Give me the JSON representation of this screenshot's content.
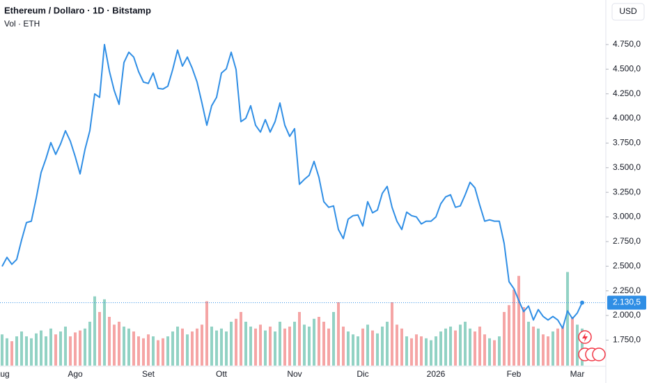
{
  "chart_data": {
    "type": "line",
    "title": "Ethereum / Dollaro · 1D · Bitstamp",
    "subtitle": "Vol · ETH",
    "currency": "USD",
    "categories": [
      "Aug",
      null,
      null,
      null,
      null,
      null,
      null,
      null,
      null,
      null,
      null,
      null,
      null,
      null,
      null,
      "Ago",
      null,
      null,
      null,
      null,
      null,
      null,
      null,
      null,
      null,
      null,
      null,
      null,
      null,
      null,
      "Set",
      null,
      null,
      null,
      null,
      null,
      null,
      null,
      null,
      null,
      null,
      null,
      null,
      null,
      null,
      "Ott",
      null,
      null,
      null,
      null,
      null,
      null,
      null,
      null,
      null,
      null,
      null,
      null,
      null,
      null,
      "Nov",
      null,
      null,
      null,
      null,
      null,
      null,
      null,
      null,
      null,
      null,
      null,
      null,
      null,
      "Dic",
      null,
      null,
      null,
      null,
      null,
      null,
      null,
      null,
      null,
      null,
      null,
      null,
      null,
      null,
      "2026",
      null,
      null,
      null,
      null,
      null,
      null,
      null,
      null,
      null,
      null,
      null,
      null,
      null,
      null,
      null,
      "Feb",
      null,
      null,
      null,
      null,
      null,
      null,
      null,
      null,
      null,
      null,
      null,
      null,
      "Mar",
      null
    ],
    "series": [
      {
        "name": "Ethereum / Dollaro",
        "color": "#2f8ee5",
        "values": [
          2498,
          2590,
          2519,
          2569,
          2766,
          2943,
          2957,
          3190,
          3451,
          3592,
          3755,
          3635,
          3741,
          3875,
          3769,
          3613,
          3437,
          3684,
          3875,
          4249,
          4214,
          4750,
          4482,
          4284,
          4143,
          4567,
          4672,
          4623,
          4475,
          4369,
          4355,
          4461,
          4305,
          4298,
          4327,
          4496,
          4694,
          4531,
          4623,
          4510,
          4369,
          4157,
          3931,
          4129,
          4214,
          4461,
          4503,
          4672,
          4496,
          3967,
          4002,
          4129,
          3931,
          3861,
          3988,
          3861,
          3967,
          4157,
          3931,
          3818,
          3896,
          3331,
          3381,
          3423,
          3564,
          3402,
          3155,
          3098,
          3112,
          2872,
          2780,
          2978,
          3013,
          3020,
          2908,
          3155,
          3042,
          3070,
          3239,
          3310,
          3098,
          2957,
          2872,
          3049,
          3013,
          3000,
          2929,
          2957,
          2957,
          3000,
          3134,
          3204,
          3225,
          3098,
          3112,
          3225,
          3352,
          3296,
          3119,
          2957,
          2971,
          2957,
          2957,
          2731,
          2343,
          2272,
          2152,
          2039,
          2096,
          1954,
          2060,
          1990,
          1954,
          1990,
          1954,
          1870,
          2046,
          1968,
          2025,
          2130.5
        ]
      }
    ],
    "volume": {
      "name": "Vol",
      "axis": "y2",
      "up_color": "#92d2c4",
      "down_color": "#f5a5a5",
      "values": [
        32,
        28,
        25,
        30,
        35,
        30,
        28,
        33,
        36,
        30,
        38,
        32,
        35,
        40,
        30,
        34,
        36,
        38,
        45,
        71,
        55,
        68,
        50,
        42,
        45,
        40,
        38,
        35,
        30,
        28,
        32,
        30,
        26,
        28,
        30,
        35,
        40,
        38,
        32,
        35,
        38,
        42,
        66,
        40,
        36,
        38,
        35,
        45,
        48,
        55,
        45,
        40,
        38,
        42,
        36,
        40,
        35,
        45,
        38,
        40,
        45,
        55,
        42,
        40,
        48,
        50,
        45,
        38,
        55,
        65,
        40,
        35,
        32,
        30,
        38,
        42,
        36,
        33,
        40,
        45,
        65,
        42,
        38,
        30,
        28,
        32,
        30,
        28,
        26,
        30,
        35,
        38,
        40,
        36,
        42,
        45,
        38,
        35,
        40,
        32,
        28,
        26,
        30,
        55,
        62,
        78,
        92,
        60,
        45,
        40,
        38,
        32,
        30,
        35,
        38,
        40,
        96,
        50,
        42,
        38
      ]
    },
    "ylim": [
      1456,
      5202
    ],
    "y2lim": [
      0,
      100
    ],
    "yticks": [
      {
        "value": 1750,
        "label": "1.750,0"
      },
      {
        "value": 2000,
        "label": "2.000,0"
      },
      {
        "value": 2250,
        "label": "2.250,0"
      },
      {
        "value": 2500,
        "label": "2.500,0"
      },
      {
        "value": 2750,
        "label": "2.750,0"
      },
      {
        "value": 3000,
        "label": "3.000,0"
      },
      {
        "value": 3250,
        "label": "3.250,0"
      },
      {
        "value": 3500,
        "label": "3.500,0"
      },
      {
        "value": 3750,
        "label": "3.750,0"
      },
      {
        "value": 4000,
        "label": "4.000,0"
      },
      {
        "value": 4250,
        "label": "4.250,0"
      },
      {
        "value": 4500,
        "label": "4.500,0"
      },
      {
        "value": 4750,
        "label": "4.750,0"
      }
    ],
    "last_price": {
      "value": 2130.5,
      "label": "2.130,5"
    },
    "grid": false
  }
}
